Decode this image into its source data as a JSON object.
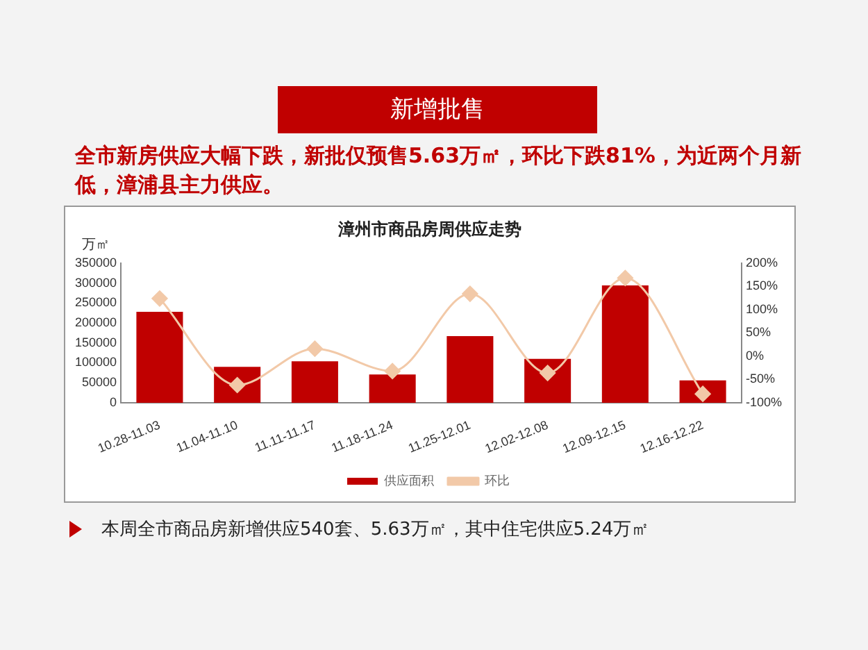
{
  "chart_data": {
    "type": "bar",
    "title": "漳州市商品房周供应走势",
    "ylabel": "万㎡",
    "annotations": [
      "新增批售",
      "全市新房供应大幅下跌，新批仅预售5.63万㎡，环比下跌81%，为近两个月新低，漳浦县主力供应。",
      "本周全市商品房新增供应540套、5.63万㎡，其中住宅供应5.24万㎡"
    ],
    "categories": [
      "10.28-11.03",
      "11.04-11.10",
      "11.11-11.17",
      "11.18-11.24",
      "11.25-12.01",
      "12.02-12.08",
      "12.09-12.15",
      "12.16-12.22"
    ],
    "series": [
      {
        "name": "供应面积",
        "color": "#c00000",
        "values": [
          228000,
          90000,
          104000,
          71000,
          167000,
          110000,
          294000,
          56000
        ]
      },
      {
        "name": "环比",
        "type": "line",
        "axis": "y2",
        "color": "#f2c9a8",
        "marker": "diamond",
        "values": [
          124,
          -62,
          16,
          -32,
          134,
          -36,
          168,
          -81
        ]
      }
    ],
    "ylim": [
      0,
      350000
    ],
    "yticks": [
      0,
      50000,
      100000,
      150000,
      200000,
      250000,
      300000,
      350000
    ],
    "y2lim": [
      -100,
      200
    ],
    "y2ticks": [
      {
        "value": -100,
        "label": "-100%"
      },
      {
        "value": -50,
        "label": "-50%"
      },
      {
        "value": 0,
        "label": "0%"
      },
      {
        "value": 50,
        "label": "50%"
      },
      {
        "value": 100,
        "label": "100%"
      },
      {
        "value": 150,
        "label": "150%"
      },
      {
        "value": 200,
        "label": "200%"
      }
    ],
    "grid": false,
    "legend": "bottom"
  }
}
